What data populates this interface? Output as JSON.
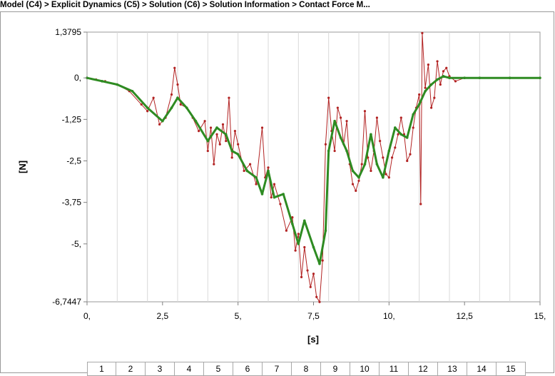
{
  "breadcrumb": "Model (C4) > Explicit Dynamics (C5) > Solution (C6) > Solution Information > Contact Force M...",
  "colors": {
    "raw": "#b22222",
    "smoothed": "#2e8b22",
    "grid": "#d9d9d9",
    "axis": "#808080"
  },
  "tracks": [
    "1",
    "2",
    "3",
    "4",
    "5",
    "6",
    "7",
    "8",
    "9",
    "10",
    "11",
    "12",
    "13",
    "14",
    "15"
  ],
  "chart_data": {
    "type": "line",
    "xlabel": "[s]",
    "ylabel": "[N]",
    "xlim": [
      0,
      15
    ],
    "ylim": [
      -6.7447,
      1.3795
    ],
    "x_ticks": [
      {
        "value": 0,
        "label": "0,"
      },
      {
        "value": 2.5,
        "label": "2,5"
      },
      {
        "value": 5,
        "label": "5,"
      },
      {
        "value": 7.5,
        "label": "7,5"
      },
      {
        "value": 10,
        "label": "10,"
      },
      {
        "value": 12.5,
        "label": "12,5"
      },
      {
        "value": 15,
        "label": "15,"
      }
    ],
    "y_ticks": [
      {
        "value": 1.3795,
        "label": "1,3795"
      },
      {
        "value": 0,
        "label": "0,"
      },
      {
        "value": -1.25,
        "label": "-1,25"
      },
      {
        "value": -2.5,
        "label": "-2,5"
      },
      {
        "value": -3.75,
        "label": "-3,75"
      },
      {
        "value": -5,
        "label": "-5,"
      },
      {
        "value": -6.7447,
        "label": "-6,7447"
      }
    ],
    "grid": "vertical",
    "series": [
      {
        "style": "raw",
        "x": [
          0,
          0.3,
          0.6,
          1.0,
          1.4,
          1.8,
          2.0,
          2.2,
          2.4,
          2.6,
          2.8,
          2.9,
          3.0,
          3.1,
          3.3,
          3.5,
          3.7,
          3.9,
          4.0,
          4.1,
          4.2,
          4.3,
          4.4,
          4.5,
          4.6,
          4.7,
          4.8,
          4.9,
          5.0,
          5.2,
          5.4,
          5.6,
          5.8,
          5.9,
          6.0,
          6.1,
          6.2,
          6.4,
          6.6,
          6.8,
          6.9,
          7.0,
          7.1,
          7.2,
          7.3,
          7.4,
          7.5,
          7.6,
          7.7,
          7.8,
          7.9,
          8.0,
          8.1,
          8.2,
          8.3,
          8.4,
          8.5,
          8.6,
          8.7,
          8.8,
          8.9,
          9.0,
          9.1,
          9.2,
          9.3,
          9.4,
          9.5,
          9.6,
          9.7,
          9.8,
          9.9,
          10.0,
          10.1,
          10.2,
          10.3,
          10.4,
          10.5,
          10.6,
          10.7,
          10.8,
          10.9,
          11.0,
          11.05,
          11.1,
          11.2,
          11.3,
          11.4,
          11.5,
          11.6,
          11.7,
          11.8,
          11.9,
          12.0,
          12.2,
          12.5,
          13.0,
          14.0,
          15.0
        ],
        "y": [
          0.0,
          -0.05,
          -0.1,
          -0.2,
          -0.4,
          -0.8,
          -1.0,
          -0.6,
          -1.4,
          -1.2,
          -0.5,
          0.3,
          -0.2,
          -0.8,
          -0.9,
          -1.2,
          -1.6,
          -1.3,
          -2.2,
          -1.5,
          -2.6,
          -1.7,
          -2.0,
          -1.4,
          -1.9,
          -0.6,
          -2.4,
          -1.6,
          -2.0,
          -2.8,
          -2.6,
          -3.2,
          -1.5,
          -3.0,
          -2.7,
          -3.6,
          -3.2,
          -3.8,
          -4.6,
          -4.2,
          -5.2,
          -4.7,
          -6.0,
          -5.1,
          -5.8,
          -6.3,
          -5.9,
          -6.6,
          -6.75,
          -5.5,
          -2.0,
          -0.6,
          -1.6,
          -2.2,
          -0.9,
          -1.2,
          -2.0,
          -1.3,
          -2.6,
          -3.2,
          -3.4,
          -3.1,
          -2.6,
          -1.0,
          -2.4,
          -2.8,
          -2.2,
          -1.2,
          -1.9,
          -2.4,
          -2.9,
          -3.0,
          -2.4,
          -2.1,
          -1.7,
          -1.2,
          -1.7,
          -2.5,
          -2.3,
          -1.5,
          -0.9,
          -0.5,
          -3.8,
          1.35,
          -0.3,
          0.4,
          -0.9,
          -0.6,
          0.5,
          -0.2,
          0.2,
          0.3,
          0.05,
          -0.1,
          0.0,
          0.0,
          0.0,
          0.0
        ]
      },
      {
        "style": "smoothed",
        "x": [
          0,
          0.5,
          1.0,
          1.5,
          2.0,
          2.5,
          2.8,
          3.0,
          3.3,
          3.6,
          4.0,
          4.3,
          4.6,
          4.8,
          5.0,
          5.3,
          5.6,
          5.8,
          6.0,
          6.2,
          6.5,
          6.8,
          7.0,
          7.2,
          7.5,
          7.7,
          7.9,
          8.0,
          8.2,
          8.4,
          8.6,
          8.8,
          9.0,
          9.2,
          9.4,
          9.6,
          9.8,
          10.0,
          10.2,
          10.4,
          10.6,
          10.8,
          11.0,
          11.2,
          11.4,
          11.6,
          11.8,
          12.0,
          12.5,
          13.0,
          14.0,
          15.0
        ],
        "y": [
          0.0,
          -0.1,
          -0.2,
          -0.4,
          -0.9,
          -1.3,
          -0.9,
          -0.6,
          -0.9,
          -1.3,
          -1.9,
          -1.5,
          -1.7,
          -2.2,
          -2.3,
          -2.8,
          -3.0,
          -3.5,
          -2.8,
          -3.6,
          -3.5,
          -4.4,
          -5.0,
          -4.3,
          -5.1,
          -5.6,
          -4.6,
          -2.2,
          -1.3,
          -1.8,
          -2.2,
          -2.8,
          -3.0,
          -2.6,
          -1.7,
          -2.6,
          -3.0,
          -2.2,
          -1.5,
          -1.7,
          -1.8,
          -1.1,
          -0.8,
          -0.4,
          -0.2,
          -0.05,
          0.05,
          0.0,
          0.0,
          0.0,
          0.0,
          0.0
        ]
      }
    ]
  }
}
